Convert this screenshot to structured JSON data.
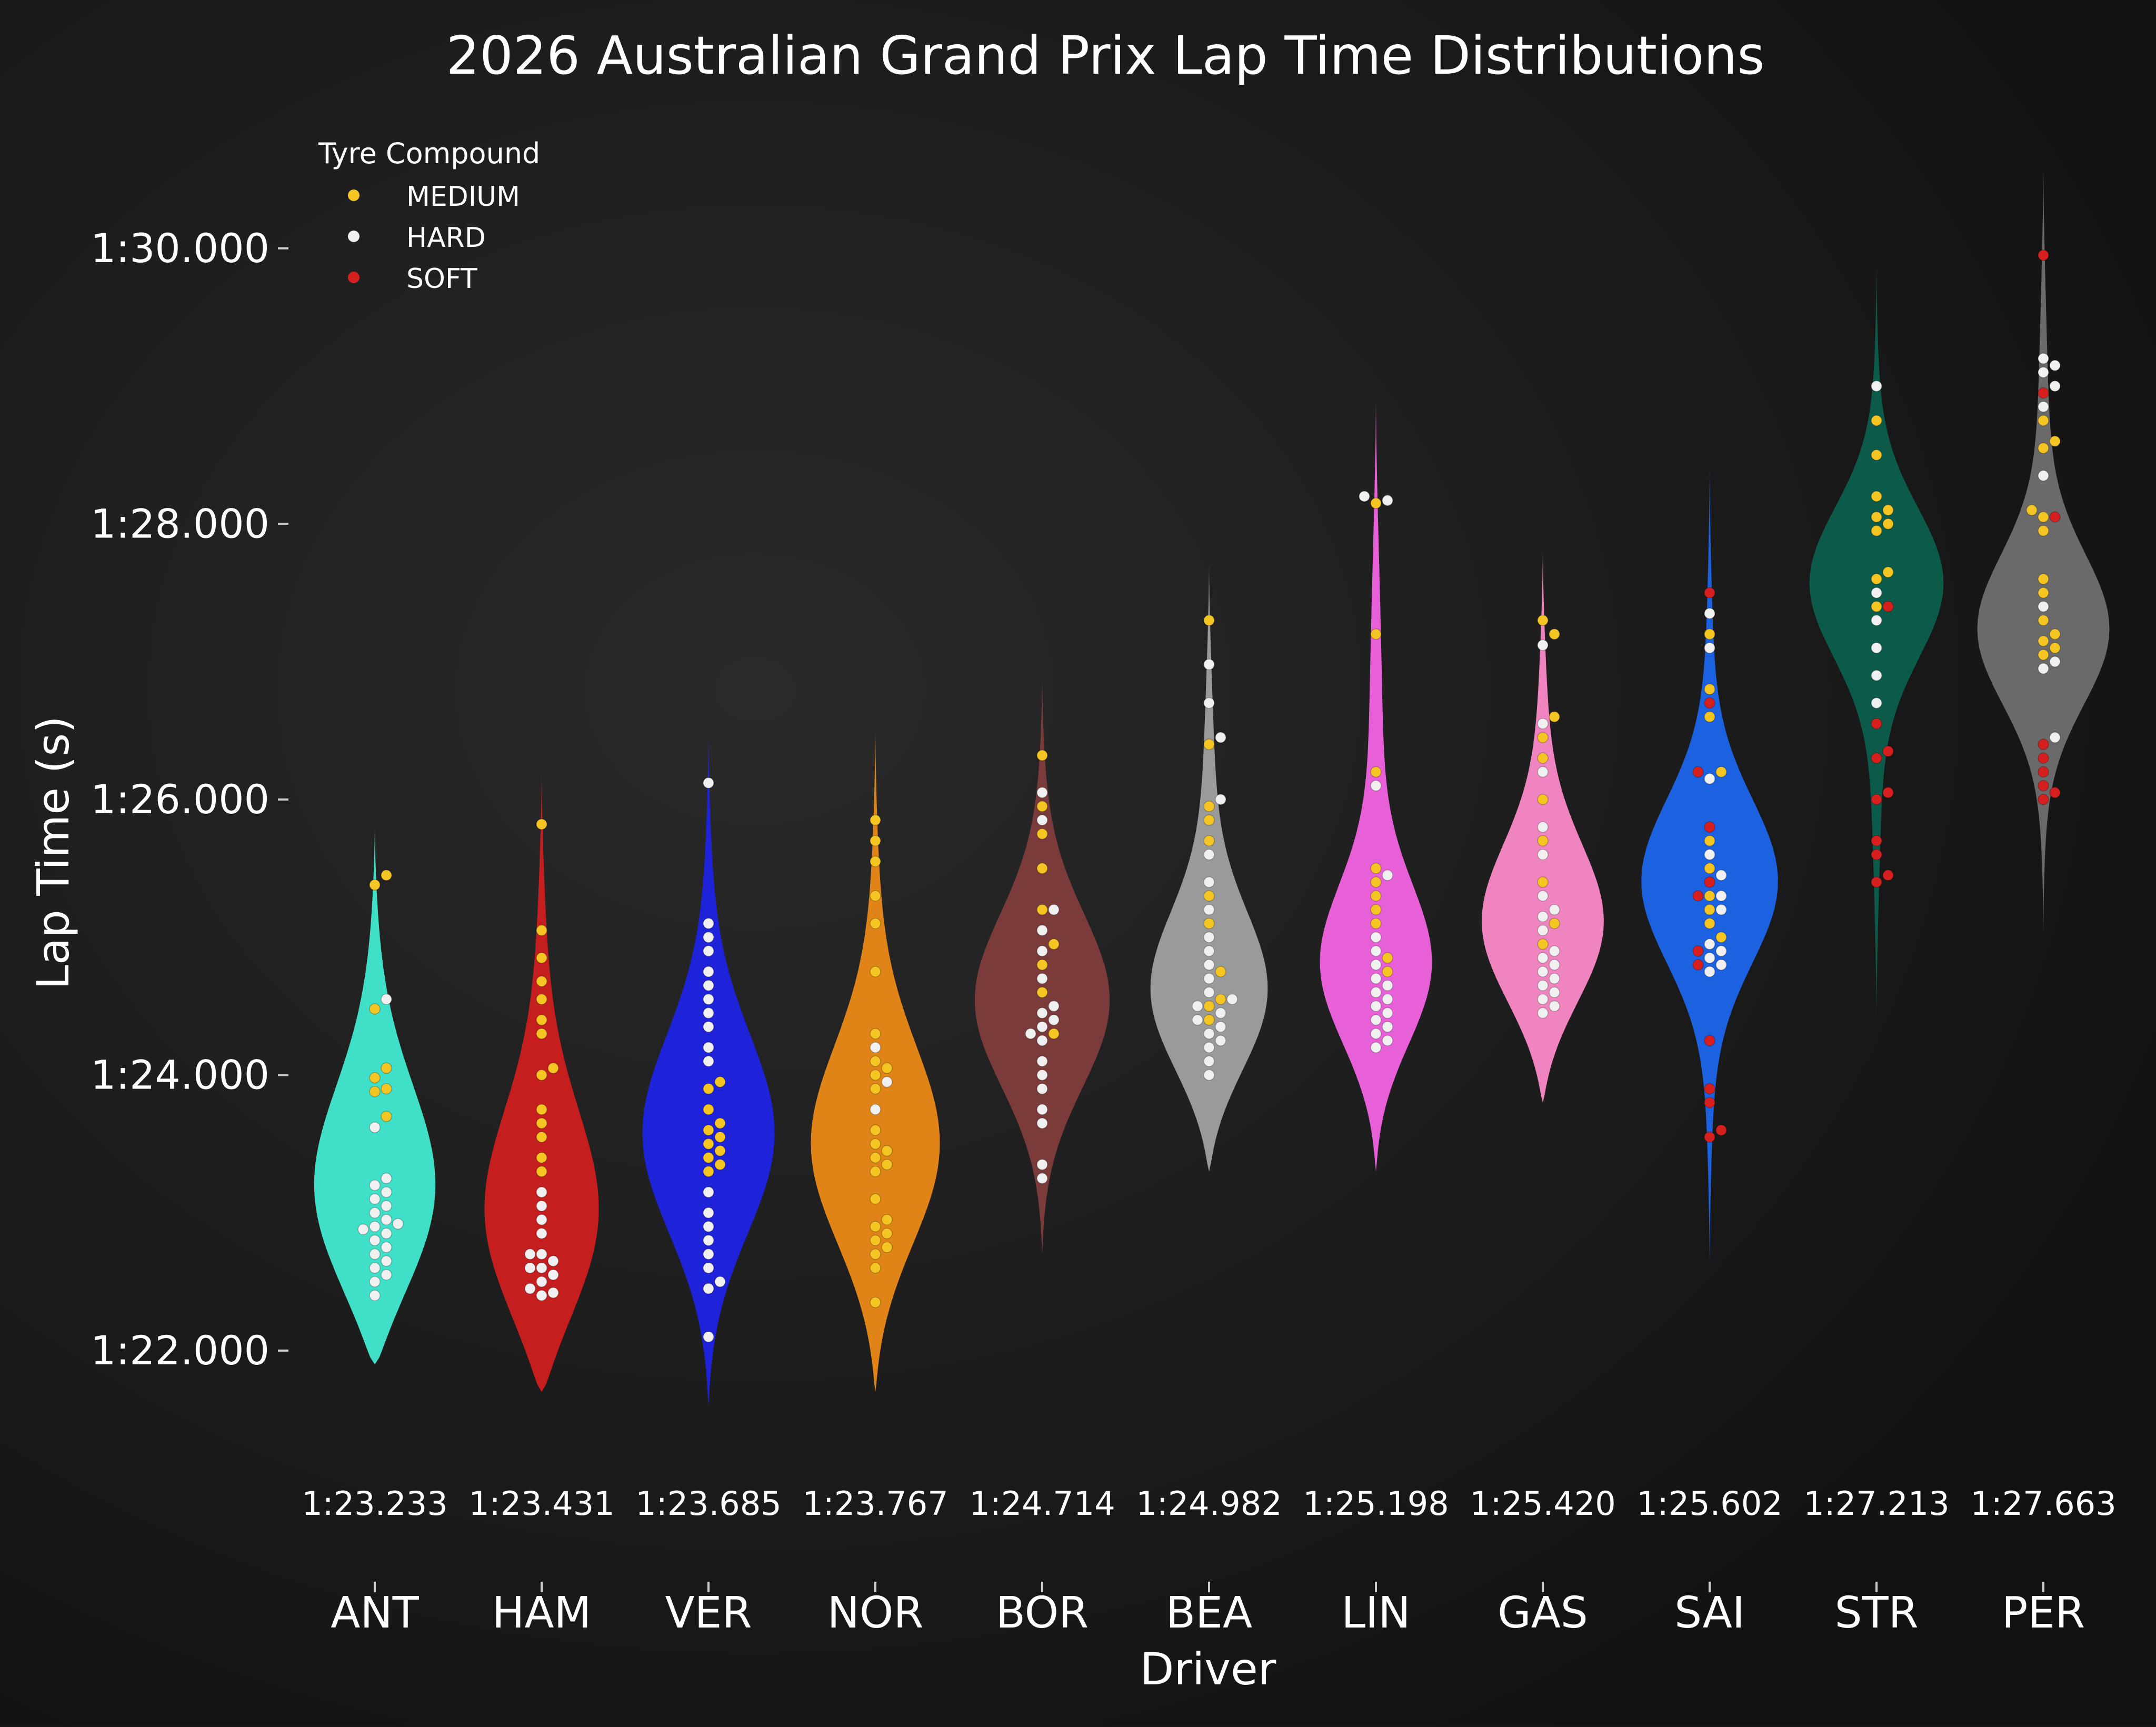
{
  "chart_data": {
    "type": "violin",
    "title": "2026 Australian Grand Prix Lap Time Distributions",
    "xlabel": "Driver",
    "ylabel": "Lap Time (s)",
    "ylim": [
      80.8,
      91.0
    ],
    "yticks": [
      82,
      84,
      86,
      88,
      90
    ],
    "ytick_labels": [
      "1:22.000",
      "1:24.000",
      "1:26.000",
      "1:28.000",
      "1:30.000"
    ],
    "legend": {
      "title": "Tyre Compound",
      "position": "top-left",
      "entries": [
        {
          "label": "MEDIUM",
          "color": "#f5c623"
        },
        {
          "label": "HARD",
          "color": "#f0f0f0"
        },
        {
          "label": "SOFT",
          "color": "#d62020"
        }
      ]
    },
    "drivers": [
      {
        "code": "ANT",
        "median_label": "1:23.233",
        "color": "#40e0c8",
        "range": [
          81.9,
          85.8
        ],
        "peak": 83.0,
        "peak_width": 0.8,
        "laps": {
          "MEDIUM": [
            85.45,
            85.38,
            84.48,
            84.05,
            83.98,
            83.9,
            83.88,
            83.7
          ],
          "HARD": [
            84.55,
            83.62,
            83.25,
            83.2,
            83.15,
            83.1,
            83.05,
            83.0,
            82.95,
            82.92,
            82.9,
            82.88,
            82.85,
            82.8,
            82.75,
            82.7,
            82.65,
            82.6,
            82.55,
            82.5,
            82.4
          ]
        }
      },
      {
        "code": "HAM",
        "median_label": "1:23.431",
        "color": "#c41e1e",
        "range": [
          81.7,
          86.2
        ],
        "peak": 82.8,
        "peak_width": 0.8,
        "laps": {
          "MEDIUM": [
            85.82,
            85.05,
            84.85,
            84.68,
            84.55,
            84.4,
            84.3,
            84.05,
            84.0,
            83.75,
            83.65,
            83.55,
            83.4,
            83.3
          ],
          "HARD": [
            83.15,
            83.05,
            82.95,
            82.85,
            82.7,
            82.65,
            82.6,
            82.55,
            82.5,
            82.45,
            82.42,
            82.4,
            82.6,
            82.7
          ]
        }
      },
      {
        "code": "VER",
        "median_label": "1:23.685",
        "color": "#1e22d8",
        "range": [
          81.6,
          86.5
        ],
        "peak": 83.5,
        "peak_width": 0.75,
        "laps": {
          "MEDIUM": [
            83.9,
            83.75,
            83.65,
            83.55,
            83.5,
            83.45,
            83.4,
            83.35,
            83.3,
            83.95,
            83.6
          ],
          "HARD": [
            86.12,
            85.1,
            85.0,
            84.9,
            84.75,
            84.65,
            84.55,
            84.35,
            84.2,
            83.15,
            83.0,
            82.9,
            82.8,
            82.7,
            82.6,
            82.5,
            82.45,
            82.1,
            84.1,
            84.45
          ]
        }
      },
      {
        "code": "NOR",
        "median_label": "1:23.767",
        "color": "#e08418",
        "range": [
          81.7,
          86.5
        ],
        "peak": 83.4,
        "peak_width": 0.75,
        "laps": {
          "MEDIUM": [
            85.85,
            85.7,
            85.55,
            85.3,
            85.1,
            84.75,
            84.3,
            84.1,
            84.05,
            84.0,
            83.9,
            83.6,
            83.5,
            83.45,
            83.4,
            83.35,
            83.3,
            83.1,
            82.95,
            82.9,
            82.85,
            82.8,
            82.75,
            82.7,
            82.6,
            82.35
          ],
          "HARD": [
            84.2,
            83.95,
            83.75
          ]
        }
      },
      {
        "code": "BOR",
        "median_label": "1:24.714",
        "color": "#7b3b3b",
        "range": [
          82.7,
          86.9
        ],
        "peak": 84.5,
        "peak_width": 0.65,
        "laps": {
          "MEDIUM": [
            86.32,
            85.95,
            85.75,
            85.5,
            85.2,
            84.95,
            84.8,
            84.6,
            84.3
          ],
          "HARD": [
            86.05,
            85.85,
            85.2,
            85.05,
            84.9,
            84.7,
            84.5,
            84.45,
            84.4,
            84.35,
            84.3,
            84.25,
            84.1,
            84.0,
            83.9,
            83.75,
            83.65,
            83.35,
            83.25
          ]
        }
      },
      {
        "code": "BEA",
        "median_label": "1:24.982",
        "color": "#9a9a9a",
        "range": [
          83.3,
          87.7
        ],
        "peak": 84.5,
        "peak_width": 0.6,
        "laps": {
          "MEDIUM": [
            87.3,
            86.4,
            85.95,
            85.85,
            85.7,
            85.3,
            85.1,
            84.75,
            84.55,
            84.5,
            84.4
          ],
          "HARD": [
            86.98,
            86.7,
            86.45,
            86.0,
            85.6,
            85.4,
            85.2,
            85.0,
            84.9,
            84.8,
            84.7,
            84.6,
            84.55,
            84.5,
            84.45,
            84.4,
            84.35,
            84.3,
            84.25,
            84.2,
            84.1,
            84.0
          ]
        }
      },
      {
        "code": "LIN",
        "median_label": "1:25.198",
        "color": "#e860d8",
        "range": [
          83.3,
          88.9
        ],
        "peak": 84.7,
        "peak_width": 0.6,
        "laps": {
          "MEDIUM": [
            88.15,
            87.2,
            86.2,
            85.5,
            85.4,
            85.3,
            85.2,
            85.1,
            84.85,
            84.75
          ],
          "HARD": [
            88.2,
            88.17,
            86.1,
            85.45,
            85.0,
            84.9,
            84.8,
            84.7,
            84.65,
            84.6,
            84.55,
            84.5,
            84.45,
            84.4,
            84.35,
            84.3,
            84.25,
            84.2
          ]
        }
      },
      {
        "code": "GAS",
        "median_label": "1:25.420",
        "color": "#f084c0",
        "range": [
          83.8,
          87.8
        ],
        "peak": 85.0,
        "peak_width": 0.6,
        "laps": {
          "MEDIUM": [
            87.3,
            87.2,
            86.6,
            86.45,
            86.3,
            86.0,
            85.7,
            85.4,
            85.1,
            84.95
          ],
          "HARD": [
            87.12,
            86.55,
            86.2,
            85.8,
            85.6,
            85.3,
            85.2,
            85.15,
            85.05,
            84.9,
            84.85,
            84.8,
            84.75,
            84.7,
            84.65,
            84.6,
            84.55,
            84.5,
            84.45
          ]
        }
      },
      {
        "code": "SAI",
        "median_label": "1:25.602",
        "color": "#1c62e0",
        "range": [
          82.6,
          88.4
        ],
        "peak": 85.4,
        "peak_width": 0.6,
        "laps": {
          "MEDIUM": [
            87.2,
            86.8,
            86.6,
            86.2,
            85.7,
            85.5,
            85.3,
            85.2,
            85.1,
            85.0
          ],
          "HARD": [
            87.35,
            87.1,
            86.15,
            85.6,
            85.45,
            85.3,
            85.2,
            84.95,
            84.9,
            84.85,
            84.8,
            84.75
          ],
          "SOFT": [
            87.5,
            86.7,
            86.2,
            85.8,
            85.4,
            85.3,
            84.9,
            84.8,
            84.25,
            83.9,
            83.8,
            83.6,
            83.55
          ]
        }
      },
      {
        "code": "STR",
        "median_label": "1:27.213",
        "color": "#0c5a4a",
        "range": [
          84.4,
          89.9
        ],
        "peak": 87.6,
        "peak_width": 0.55,
        "laps": {
          "MEDIUM": [
            88.75,
            88.5,
            88.2,
            88.1,
            88.05,
            88.0,
            87.95,
            87.65,
            87.6,
            87.4
          ],
          "HARD": [
            89.0,
            87.5,
            87.3,
            87.1,
            86.9,
            86.7
          ],
          "SOFT": [
            87.4,
            86.55,
            86.35,
            86.3,
            86.05,
            86.0,
            85.7,
            85.6,
            85.45,
            85.4
          ]
        }
      },
      {
        "code": "PER",
        "median_label": "1:27.663",
        "color": "#6a6a6a",
        "range": [
          85.0,
          90.6
        ],
        "peak": 87.2,
        "peak_width": 0.55,
        "laps": {
          "MEDIUM": [
            88.75,
            88.6,
            88.55,
            88.1,
            88.05,
            87.95,
            87.6,
            87.5,
            87.3,
            87.2,
            87.15,
            87.1,
            87.05
          ],
          "HARD": [
            89.2,
            89.15,
            89.1,
            89.0,
            88.85,
            88.35,
            87.4,
            87.0,
            86.95,
            86.45
          ],
          "SOFT": [
            89.95,
            88.95,
            88.05,
            86.4,
            86.3,
            86.2,
            86.1,
            86.05,
            86.0
          ]
        }
      }
    ]
  }
}
